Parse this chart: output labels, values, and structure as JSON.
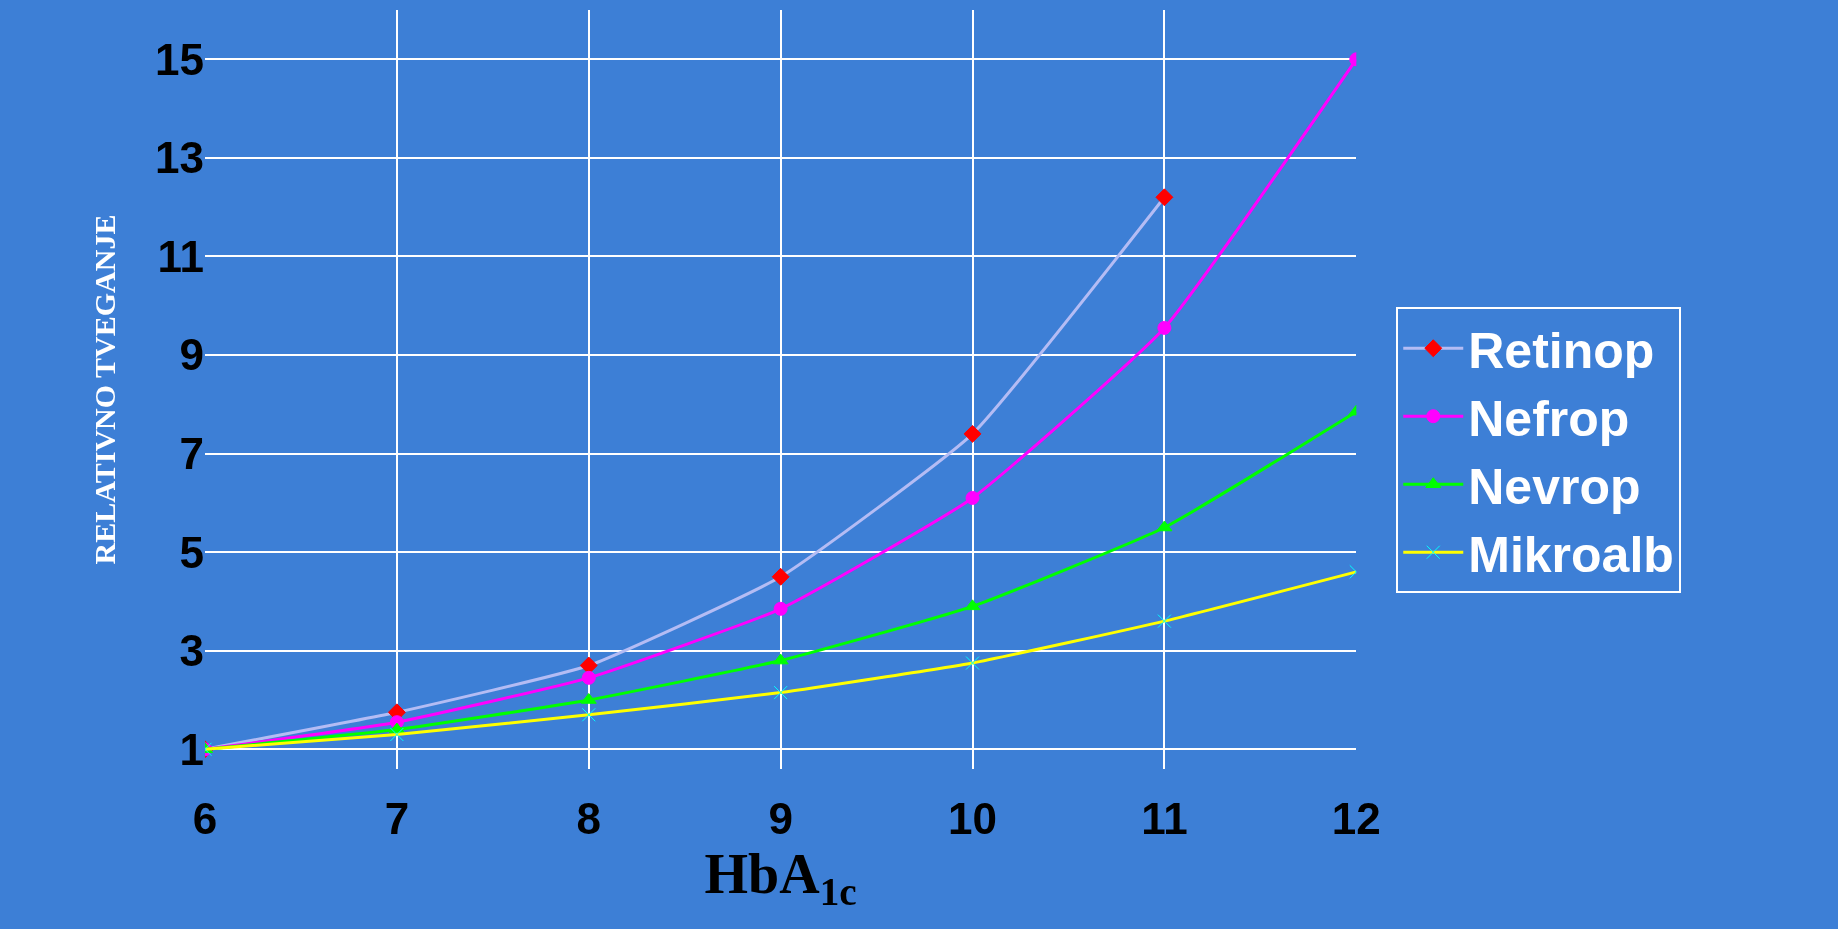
{
  "chart_data": {
    "type": "line",
    "xlabel": "HbA$_{1c}$",
    "ylabel": "RELATIVNO TVEGANJE",
    "x": [
      6,
      7,
      8,
      9,
      10,
      11,
      12
    ],
    "series": [
      {
        "name": "Retinop",
        "color": "#b4bcf4",
        "colors": [
          "#ff0000",
          "#ff0000",
          "#ff0000",
          "#ff0000",
          "#ff0000",
          "#ff0000",
          "#ff0000"
        ],
        "marker": "diamond",
        "values": [
          1,
          1.75,
          2.7,
          4.5,
          7.4,
          12.2,
          null
        ]
      },
      {
        "name": "Nefrop",
        "color": "#ff00ff",
        "marker": "circle",
        "values": [
          1,
          1.55,
          2.45,
          3.85,
          6.1,
          9.55,
          15
        ]
      },
      {
        "name": "Nevrop",
        "color": "#00ff00",
        "marker": "triangle",
        "values": [
          1,
          1.4,
          2.0,
          2.8,
          3.9,
          5.5,
          7.85
        ]
      },
      {
        "name": "Mikroalb",
        "color": "#ffff00",
        "colors": [
          "#00ffff",
          "#00ffff",
          "#00ffff",
          "#00ffff",
          "#00ffff",
          "#00ffff",
          "#00ffff"
        ],
        "marker": "cross",
        "values": [
          1,
          1.3,
          1.7,
          2.15,
          2.75,
          3.6,
          4.6
        ]
      }
    ],
    "xlim": [
      6,
      12
    ],
    "xticks": [
      6,
      7,
      8,
      9,
      10,
      11,
      12
    ],
    "ylim": [
      0.6,
      16
    ],
    "yticks": [
      1,
      3,
      5,
      7,
      9,
      11,
      13,
      15
    ],
    "grid": true,
    "legend": "right"
  }
}
